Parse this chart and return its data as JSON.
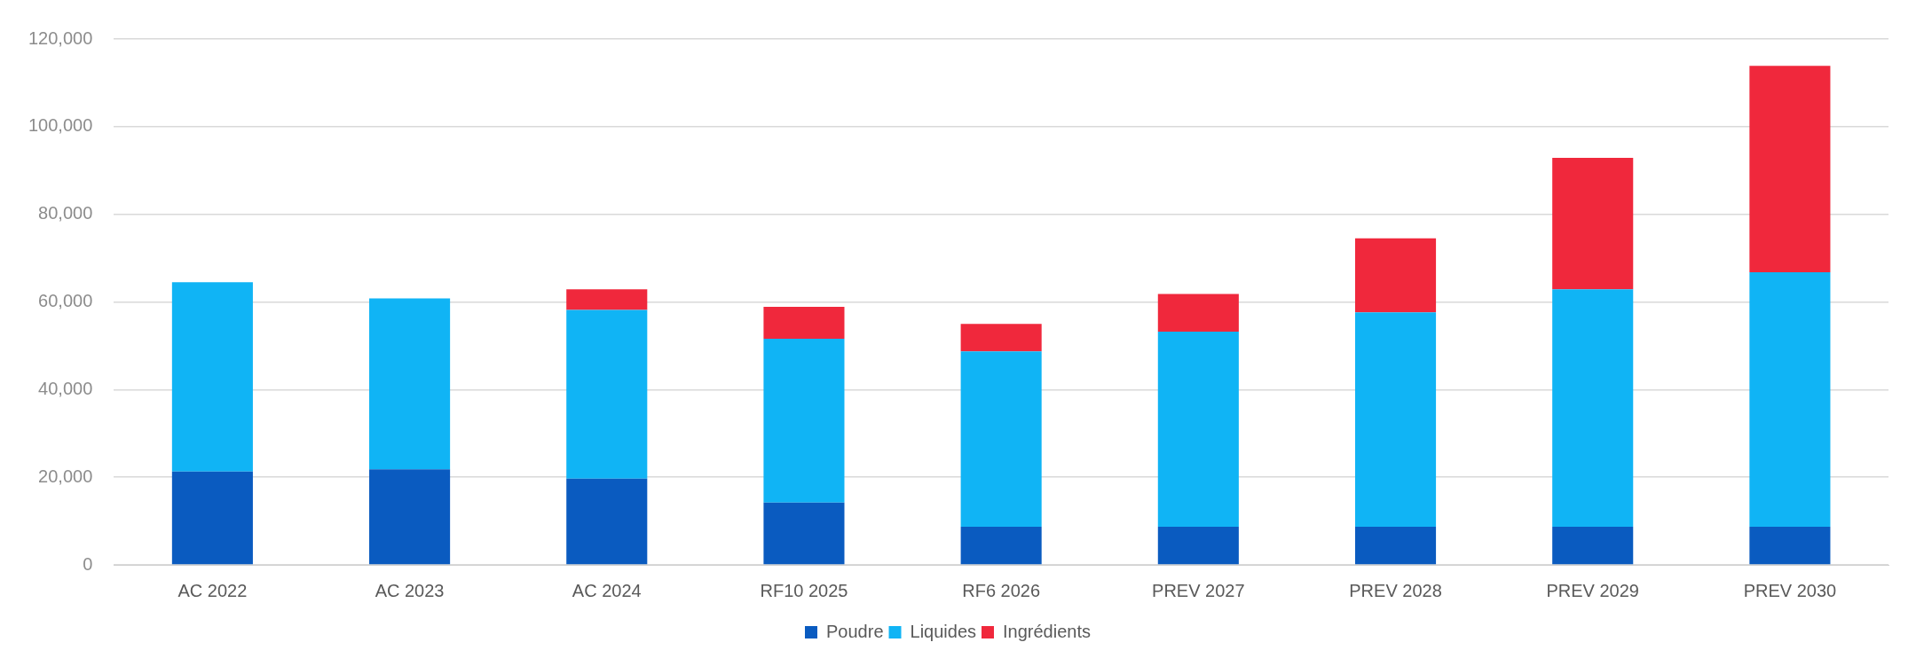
{
  "chart_data": {
    "type": "bar",
    "stacked": true,
    "categories": [
      "AC 2022",
      "AC 2023",
      "AC 2024",
      "RF10 2025",
      "RF6 2026",
      "PREV 2027",
      "PREV 2028",
      "PREV 2029",
      "PREV 2030"
    ],
    "series": [
      {
        "name": "Poudre",
        "color": "#0a5bc0",
        "values": [
          21300,
          21800,
          19700,
          14200,
          8700,
          8700,
          8700,
          8700,
          8700
        ]
      },
      {
        "name": "Liquides",
        "color": "#10b4f5",
        "values": [
          43200,
          39000,
          38500,
          37400,
          40000,
          44500,
          48900,
          54200,
          58100
        ]
      },
      {
        "name": "Ingrédients",
        "color": "#f0283c",
        "values": [
          null,
          null,
          4700,
          7300,
          6300,
          8600,
          16900,
          30000,
          47100
        ]
      }
    ],
    "ylim": [
      0,
      120000
    ],
    "yticks": [
      {
        "value": 0,
        "label": "0"
      },
      {
        "value": 20000,
        "label": "20,000"
      },
      {
        "value": 40000,
        "label": "40,000"
      },
      {
        "value": 60000,
        "label": "60,000"
      },
      {
        "value": 80000,
        "label": "80,000"
      },
      {
        "value": 100000,
        "label": "100,000"
      },
      {
        "value": 120000,
        "label": "120,000"
      }
    ],
    "grid": "y",
    "legend": "bottom"
  }
}
